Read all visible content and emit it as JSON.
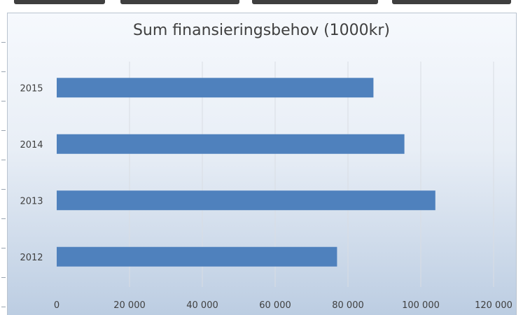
{
  "chart_data": {
    "type": "bar",
    "orientation": "horizontal",
    "title": "Sum finansieringsbehov (1000kr)",
    "categories": [
      "2015",
      "2014",
      "2013",
      "2012"
    ],
    "values": [
      87000,
      95500,
      104000,
      77000
    ],
    "xlim": [
      0,
      120000
    ],
    "x_ticks": [
      0,
      20000,
      40000,
      60000,
      80000,
      100000,
      120000
    ],
    "x_tick_labels": [
      "0",
      "20 000",
      "40 000",
      "60 000",
      "80 000",
      "100 000",
      "120 000"
    ],
    "grid": true,
    "bar_color": "#4f81bd",
    "gridline_color": "#d9dde3"
  }
}
